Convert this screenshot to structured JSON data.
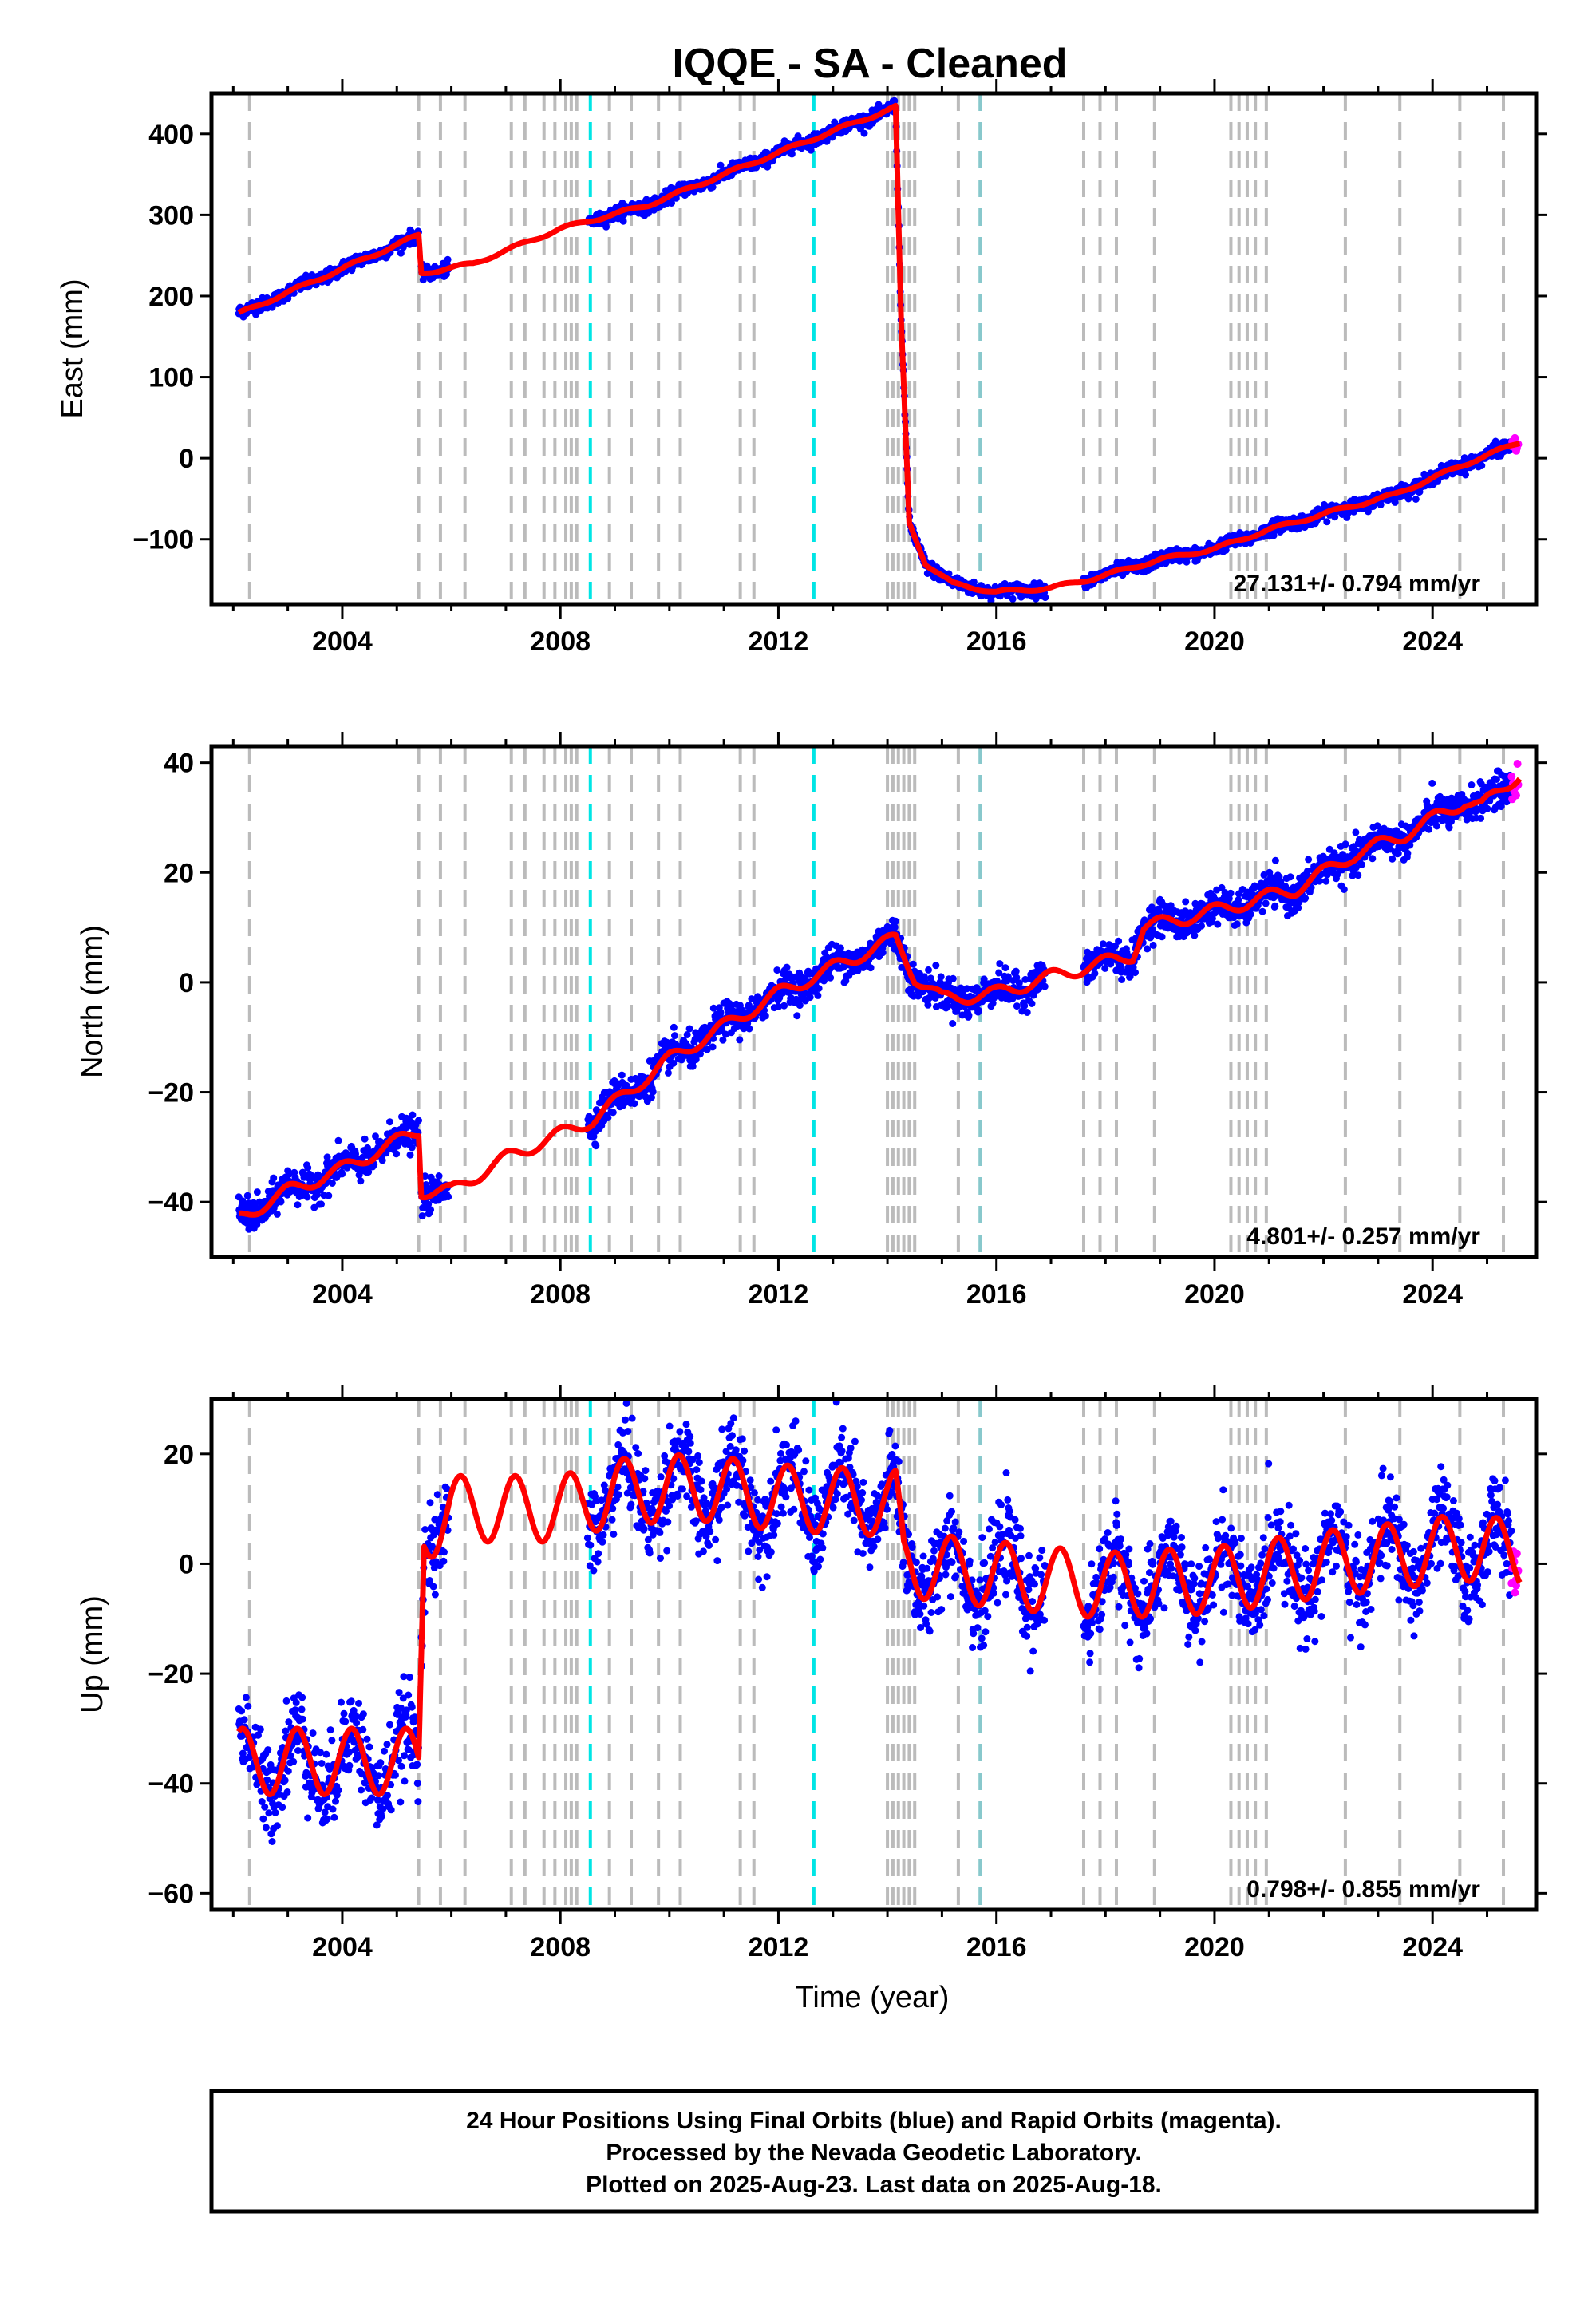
{
  "title": "IQQE  - SA - Cleaned",
  "xlabel": "Time (year)",
  "footer": [
    "24 Hour Positions Using Final Orbits (blue) and Rapid Orbits (magenta).",
    "Processed by the Nevada Geodetic Laboratory.",
    "Plotted on 2025-Aug-23. Last data on 2025-Aug-18."
  ],
  "colors": {
    "final_orbits": "#0000ff",
    "rapid_orbits": "#ff00ff",
    "model": "#ff0000",
    "equipment_change": "#bbbbbb",
    "earthquake": "#00e5e5"
  },
  "chart_data": [
    {
      "type": "scatter",
      "component": "East",
      "ylabel": "East (mm)",
      "xlim": [
        2001.6,
        2025.9
      ],
      "ylim": [
        -180,
        450
      ],
      "yticks": [
        -100,
        0,
        100,
        200,
        300,
        400
      ],
      "xticks": [
        2004,
        2008,
        2012,
        2016,
        2020,
        2024
      ],
      "rate_label": "27.131+/- 0.794 mm/yr",
      "grid": false,
      "model": {
        "knots": [
          [
            2002.1,
            178
          ],
          [
            2005.4,
            275
          ],
          [
            2005.45,
            228
          ],
          [
            2006.4,
            240
          ],
          [
            2008.0,
            283
          ],
          [
            2009.6,
            312
          ],
          [
            2011.0,
            350
          ],
          [
            2012.6,
            393
          ],
          [
            2014.15,
            433
          ],
          [
            2014.25,
            170
          ],
          [
            2014.4,
            -80
          ],
          [
            2014.7,
            -130
          ],
          [
            2015.2,
            -155
          ],
          [
            2016.0,
            -165
          ],
          [
            2017.0,
            -160
          ],
          [
            2017.8,
            -148
          ],
          [
            2019.0,
            -125
          ],
          [
            2020.0,
            -112
          ],
          [
            2021.0,
            -88
          ],
          [
            2022.2,
            -65
          ],
          [
            2023.3,
            -45
          ],
          [
            2024.5,
            -10
          ],
          [
            2025.6,
            20
          ]
        ],
        "seasonal_amp": 2,
        "phase": 0.3
      },
      "noise": 4,
      "observations": [
        [
          2002.1,
          2005.4
        ],
        [
          2005.45,
          2005.95
        ],
        [
          2008.5,
          2014.2
        ],
        [
          2014.2,
          2016.9
        ],
        [
          2017.6,
          2025.45
        ]
      ],
      "rapid_from": 2025.45
    },
    {
      "type": "scatter",
      "component": "North",
      "ylabel": "North (mm)",
      "xlim": [
        2001.6,
        2025.9
      ],
      "ylim": [
        -50,
        43
      ],
      "yticks": [
        -40,
        -20,
        0,
        20,
        40
      ],
      "xticks": [
        2004,
        2008,
        2012,
        2016,
        2020,
        2024
      ],
      "rate_label": "4.801+/- 0.257 mm/yr",
      "grid": false,
      "model": {
        "knots": [
          [
            2002.1,
            -43
          ],
          [
            2003.0,
            -38
          ],
          [
            2004.0,
            -34
          ],
          [
            2005.4,
            -27
          ],
          [
            2005.45,
            -38
          ],
          [
            2006.0,
            -38
          ],
          [
            2007.0,
            -32
          ],
          [
            2008.6,
            -25
          ],
          [
            2010.0,
            -14
          ],
          [
            2012.0,
            -2
          ],
          [
            2014.15,
            8
          ],
          [
            2014.5,
            1
          ],
          [
            2015.0,
            -3
          ],
          [
            2016.0,
            -2
          ],
          [
            2017.0,
            1
          ],
          [
            2018.5,
            5
          ],
          [
            2018.7,
            10
          ],
          [
            2020.0,
            13
          ],
          [
            2021.5,
            17
          ],
          [
            2022.5,
            23
          ],
          [
            2023.5,
            27
          ],
          [
            2024.6,
            33
          ],
          [
            2024.9,
            32
          ],
          [
            2025.6,
            38
          ]
        ],
        "seasonal_amp": 1.2,
        "phase": 1.6
      },
      "noise": 1.5,
      "observations": [
        [
          2002.1,
          2005.4
        ],
        [
          2005.45,
          2005.95
        ],
        [
          2008.5,
          2014.2
        ],
        [
          2014.2,
          2016.9
        ],
        [
          2017.6,
          2025.45
        ]
      ],
      "rapid_from": 2025.45
    },
    {
      "type": "scatter",
      "component": "Up",
      "ylabel": "Up (mm)",
      "xlim": [
        2001.6,
        2025.9
      ],
      "ylim": [
        -63,
        30
      ],
      "yticks": [
        -60,
        -40,
        -20,
        0,
        20
      ],
      "xticks": [
        2004,
        2008,
        2012,
        2016,
        2020,
        2024
      ],
      "rate_label": "0.798+/- 0.855 mm/yr",
      "grid": false,
      "model": {
        "knots": [
          [
            2002.1,
            -36
          ],
          [
            2005.4,
            -36
          ],
          [
            2005.5,
            6
          ],
          [
            2006.0,
            10
          ],
          [
            2008.0,
            10
          ],
          [
            2009.0,
            13
          ],
          [
            2010.5,
            14
          ],
          [
            2012.0,
            12
          ],
          [
            2014.15,
            11
          ],
          [
            2014.3,
            0
          ],
          [
            2016.0,
            -2
          ],
          [
            2018.0,
            -4
          ],
          [
            2020.0,
            -3
          ],
          [
            2022.0,
            0
          ],
          [
            2023.0,
            1
          ],
          [
            2024.5,
            3
          ],
          [
            2025.6,
            2
          ]
        ],
        "seasonal_amp": 6,
        "phase": 0.5
      },
      "noise": 4,
      "observations": [
        [
          2002.1,
          2005.4
        ],
        [
          2005.45,
          2005.95
        ],
        [
          2008.5,
          2014.2
        ],
        [
          2014.2,
          2016.9
        ],
        [
          2017.6,
          2025.45
        ]
      ],
      "rapid_from": 2025.45
    }
  ],
  "equipment_changes": [
    2002.3,
    2005.4,
    2005.8,
    2006.25,
    2007.1,
    2007.35,
    2007.7,
    2007.9,
    2008.1,
    2008.2,
    2008.3,
    2008.9,
    2009.3,
    2009.8,
    2010.2,
    2011.3,
    2011.55,
    2014.0,
    2014.1,
    2014.2,
    2014.3,
    2014.4,
    2014.5,
    2015.3,
    2017.6,
    2017.9,
    2018.2,
    2018.9,
    2020.3,
    2020.45,
    2020.6,
    2020.75,
    2020.95,
    2022.4,
    2023.4,
    2024.5,
    2025.3
  ],
  "earthquakes": [
    2008.55,
    2012.65
  ],
  "teal_events": [
    2015.7
  ]
}
